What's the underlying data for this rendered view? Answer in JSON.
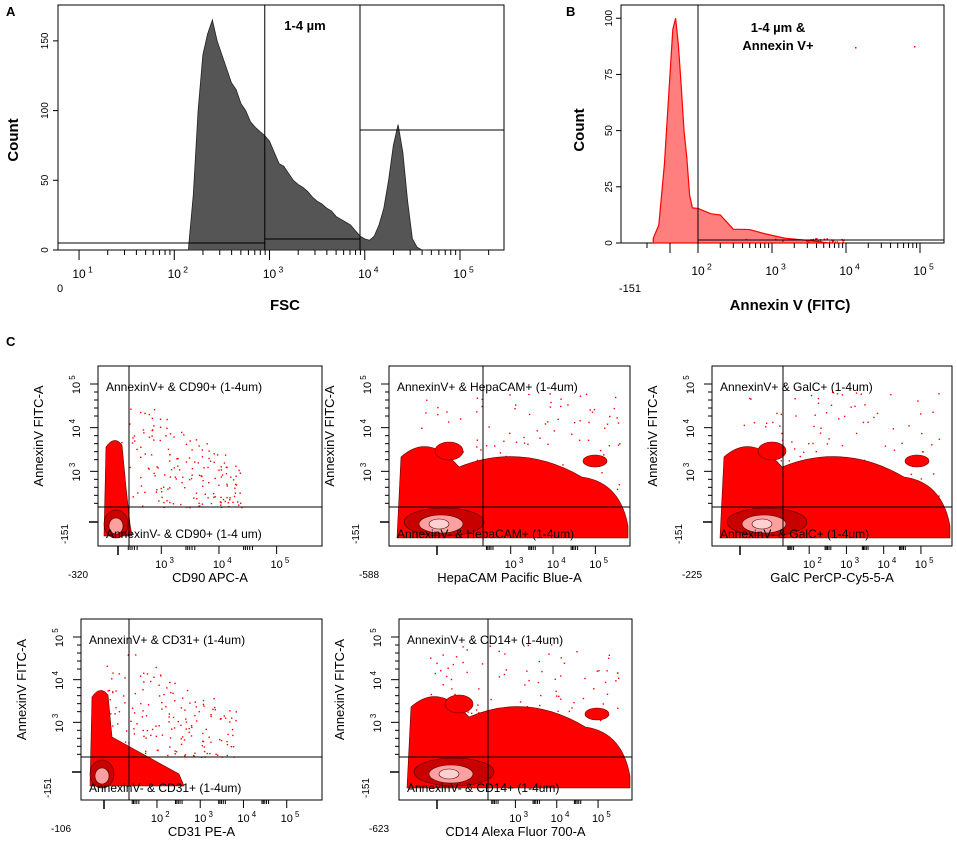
{
  "colors": {
    "histogram_fill": "#555555",
    "red": "#ff0000",
    "red_light": "#ff7f7f",
    "contour_mid": "#c80000",
    "contour_light": "#ffa0a0",
    "axis": "#000000"
  },
  "chart_data": [
    {
      "id": "A",
      "panel_label": "A",
      "type": "histogram",
      "title": "",
      "xlabel": "FSC",
      "ylabel": "Count",
      "x_scale": "log",
      "x_zero_label": "0",
      "x_ticks": [
        {
          "exp": 1,
          "base": "10",
          "sup": "1"
        },
        {
          "exp": 2,
          "base": "10",
          "sup": "2"
        },
        {
          "exp": 3,
          "base": "10",
          "sup": "3"
        },
        {
          "exp": 4,
          "base": "10",
          "sup": "4"
        },
        {
          "exp": 5,
          "base": "10",
          "sup": "5"
        }
      ],
      "y_ticks": [
        0,
        50,
        100,
        150
      ],
      "ylim": [
        0,
        170
      ],
      "gate_label": "1-4 µm",
      "gates_log10": [
        2.95,
        3.95
      ],
      "series": [
        {
          "name": "FSC events",
          "x_log10": [
            2.15,
            2.2,
            2.25,
            2.3,
            2.35,
            2.4,
            2.45,
            2.5,
            2.55,
            2.6,
            2.65,
            2.7,
            2.75,
            2.8,
            2.85,
            2.9,
            2.95,
            3.0,
            3.05,
            3.1,
            3.15,
            3.2,
            3.25,
            3.3,
            3.35,
            3.4,
            3.45,
            3.5,
            3.55,
            3.6,
            3.65,
            3.7,
            3.75,
            3.8,
            3.85,
            3.9,
            3.95,
            4.0,
            4.05,
            4.1,
            4.15,
            4.2,
            4.25,
            4.3,
            4.35,
            4.4,
            4.45,
            4.5,
            4.55,
            4.6,
            4.65
          ],
          "count": [
            2,
            40,
            100,
            140,
            155,
            165,
            150,
            140,
            130,
            120,
            115,
            105,
            100,
            92,
            88,
            85,
            82,
            78,
            70,
            62,
            60,
            55,
            50,
            47,
            45,
            42,
            38,
            35,
            33,
            30,
            28,
            24,
            22,
            20,
            18,
            14,
            10,
            8,
            7,
            10,
            18,
            30,
            50,
            75,
            90,
            70,
            35,
            8,
            2,
            0,
            0
          ]
        }
      ]
    },
    {
      "id": "B",
      "panel_label": "B",
      "type": "histogram",
      "title": "",
      "xlabel": "Annexin V (FITC)",
      "ylabel": "Count",
      "x_scale": "biexponential",
      "x_zero_label": "-151",
      "x_ticks": [
        {
          "exp": 2,
          "base": "10",
          "sup": "2"
        },
        {
          "exp": 3,
          "base": "10",
          "sup": "3"
        },
        {
          "exp": 4,
          "base": "10",
          "sup": "4"
        },
        {
          "exp": 5,
          "base": "10",
          "sup": "5"
        }
      ],
      "y_ticks": [
        0,
        25,
        50,
        75,
        100
      ],
      "ylim": [
        0,
        105
      ],
      "gate_label": [
        "1-4 µm &",
        "Annexin V+"
      ],
      "gate_at": 100,
      "series": [
        {
          "name": "Annexin V",
          "x": [
            -60,
            -40,
            -20,
            0,
            10,
            20,
            30,
            40,
            50,
            60,
            70,
            80,
            100,
            150,
            200,
            300,
            500,
            800,
            1500,
            3000,
            6000,
            10000
          ],
          "count": [
            2,
            8,
            35,
            75,
            95,
            100,
            88,
            70,
            50,
            38,
            30,
            22,
            15,
            12,
            10,
            8,
            6,
            4,
            2,
            1,
            0,
            0
          ]
        }
      ]
    }
  ],
  "panel_c": {
    "label": "C",
    "plots": [
      {
        "id": "C1",
        "xlabel": "CD90 APC-A",
        "ylabel": "AnnexinV FITC-A",
        "x_min_label": "-320",
        "y_min_label": "-151",
        "q_upper": "AnnexinV+ & CD90+ (1-4um)",
        "q_lower": "AnnexinV- & CD90+ (1-4 um)",
        "x_ticks": [
          {
            "base": "10",
            "sup": "3"
          },
          {
            "base": "10",
            "sup": "4"
          },
          {
            "base": "10",
            "sup": "5"
          }
        ],
        "y_ticks": [
          {
            "base": "10",
            "sup": "5"
          },
          {
            "base": "10",
            "sup": "4"
          },
          {
            "base": "10",
            "sup": "3"
          }
        ],
        "show_zero_tick": true
      },
      {
        "id": "C2",
        "xlabel": "HepaCAM Pacific Blue-A",
        "ylabel": "AnnexinV FITC-A",
        "x_min_label": "-588",
        "y_min_label": "-151",
        "q_upper": "AnnexinV+ & HepaCAM+ (1-4um)",
        "q_lower": "AnnexinV- & HepaCAM+ (1-4um)",
        "x_ticks": [
          {
            "base": "10",
            "sup": "3"
          },
          {
            "base": "10",
            "sup": "4"
          },
          {
            "base": "10",
            "sup": "5"
          }
        ],
        "y_ticks": [
          {
            "base": "10",
            "sup": "5"
          },
          {
            "base": "10",
            "sup": "4"
          },
          {
            "base": "10",
            "sup": "3"
          }
        ],
        "show_zero_tick": true
      },
      {
        "id": "C3",
        "xlabel": "GalC PerCP-Cy5-5-A",
        "ylabel": "AnnexinV FITC-A",
        "x_min_label": "-225",
        "y_min_label": "-151",
        "q_upper": "AnnexinV+ & GalC+ (1-4um)",
        "q_lower": "AnnexinV- & GalC+ (1-4um)",
        "x_ticks": [
          {
            "base": "10",
            "sup": "2"
          },
          {
            "base": "10",
            "sup": "3"
          },
          {
            "base": "10",
            "sup": "4"
          },
          {
            "base": "10",
            "sup": "5"
          }
        ],
        "y_ticks": [
          {
            "base": "10",
            "sup": "5"
          },
          {
            "base": "10",
            "sup": "4"
          },
          {
            "base": "10",
            "sup": "3"
          }
        ],
        "show_zero_tick": true
      },
      {
        "id": "C4",
        "xlabel": "CD31 PE-A",
        "ylabel": "AnnexinV FITC-A",
        "x_min_label": "-106",
        "y_min_label": "-151",
        "q_upper": "AnnexinV+ & CD31+ (1-4um)",
        "q_lower": "AnnexinV- & CD31+ (1-4um)",
        "x_ticks": [
          {
            "base": "10",
            "sup": "2"
          },
          {
            "base": "10",
            "sup": "3"
          },
          {
            "base": "10",
            "sup": "4"
          },
          {
            "base": "10",
            "sup": "5"
          }
        ],
        "y_ticks": [
          {
            "base": "10",
            "sup": "5"
          },
          {
            "base": "10",
            "sup": "4"
          },
          {
            "base": "10",
            "sup": "3"
          }
        ],
        "show_zero_tick": true
      },
      {
        "id": "C5",
        "xlabel": "CD14 Alexa Fluor 700-A",
        "ylabel": "AnnexinV FITC-A",
        "x_min_label": "-623",
        "y_min_label": "-151",
        "q_upper": "AnnexinV+ & CD14+ (1-4um)",
        "q_lower": "AnnexinV- & CD14+ (1-4um)",
        "x_ticks": [
          {
            "base": "10",
            "sup": "3"
          },
          {
            "base": "10",
            "sup": "4"
          },
          {
            "base": "10",
            "sup": "5"
          }
        ],
        "y_ticks": [
          {
            "base": "10",
            "sup": "5"
          },
          {
            "base": "10",
            "sup": "4"
          },
          {
            "base": "10",
            "sup": "3"
          }
        ],
        "show_zero_tick": true
      }
    ]
  }
}
